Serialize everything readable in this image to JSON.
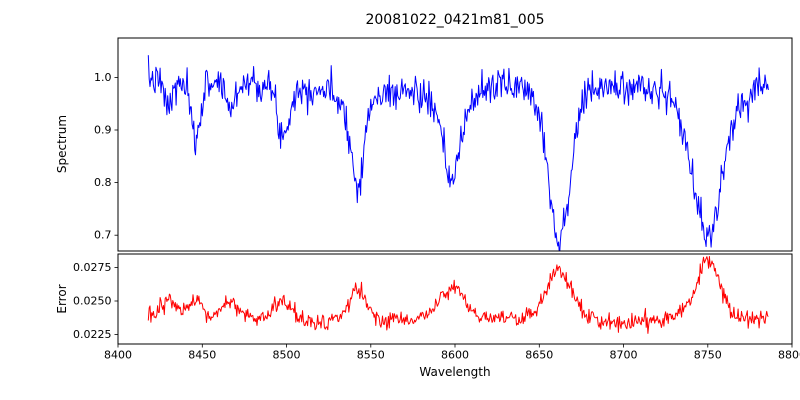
{
  "figure": {
    "title": "20081022_0421m81_005",
    "xlabel": "Wavelength",
    "background": "#ffffff",
    "axis_color": "#000000",
    "xlim": [
      8400,
      8800
    ],
    "xticks": [
      8400,
      8450,
      8500,
      8550,
      8600,
      8650,
      8700,
      8750,
      8800
    ],
    "xtick_labels": [
      "8400",
      "8450",
      "8500",
      "8550",
      "8600",
      "8650",
      "8700",
      "8750",
      "8800"
    ]
  },
  "chart_data": [
    {
      "id": "spectrum",
      "type": "line",
      "ylabel": "Spectrum",
      "line_color": "#0000ff",
      "xlim": [
        8400,
        8800
      ],
      "ylim": [
        0.67,
        1.075
      ],
      "yticks": [
        0.7,
        0.8,
        0.9,
        1.0
      ],
      "ytick_labels": [
        "0.7",
        "0.8",
        "0.9",
        "1.0"
      ],
      "x_start": 8418,
      "x_end": 8786,
      "x_step": 0.5,
      "continuum": 1.0,
      "continuum_wobble": {
        "amp": 0.008,
        "period": 190
      },
      "noise_sigma": 0.016,
      "noise_seed": 7,
      "absorption_lines": [
        {
          "center": 8430,
          "depth": 0.055,
          "sigma": 2.5,
          "gamma": 6,
          "wing": 0.3
        },
        {
          "center": 8446,
          "depth": 0.125,
          "sigma": 2.5,
          "gamma": 6,
          "wing": 0.25
        },
        {
          "center": 8467,
          "depth": 0.06,
          "sigma": 2.5,
          "gamma": 6,
          "wing": 0.3
        },
        {
          "center": 8498,
          "depth": 0.105,
          "sigma": 3.0,
          "gamma": 8,
          "wing": 0.3
        },
        {
          "center": 8542,
          "depth": 0.19,
          "sigma": 3.5,
          "gamma": 10,
          "wing": 0.3
        },
        {
          "center": 8598,
          "depth": 0.19,
          "sigma": 5.0,
          "gamma": 14,
          "wing": 0.35
        },
        {
          "center": 8662,
          "depth": 0.31,
          "sigma": 6.0,
          "gamma": 12,
          "wing": 0.25
        },
        {
          "center": 8750,
          "depth": 0.29,
          "sigma": 9.0,
          "gamma": 14,
          "wing": 0.25
        }
      ]
    },
    {
      "id": "error",
      "type": "line",
      "ylabel": "Error",
      "line_color": "#ff0000",
      "xlim": [
        8400,
        8800
      ],
      "ylim": [
        0.0218,
        0.0285
      ],
      "yticks": [
        0.0225,
        0.025,
        0.0275
      ],
      "ytick_labels": [
        "0.0225",
        "0.0250",
        "0.0275"
      ],
      "x_start": 8418,
      "x_end": 8786,
      "x_step": 0.5,
      "baseline": 0.0236,
      "baseline_wobble": {
        "amp": 0.00015,
        "period": 160
      },
      "noise_sigma": 0.00032,
      "noise_seed": 13,
      "peaks": [
        {
          "center": 8430,
          "amp": 0.0013,
          "sigma": 5
        },
        {
          "center": 8446,
          "amp": 0.0011,
          "sigma": 4
        },
        {
          "center": 8467,
          "amp": 0.0013,
          "sigma": 5
        },
        {
          "center": 8498,
          "amp": 0.0016,
          "sigma": 5
        },
        {
          "center": 8542,
          "amp": 0.0023,
          "sigma": 5
        },
        {
          "center": 8598,
          "amp": 0.0023,
          "sigma": 7
        },
        {
          "center": 8662,
          "amp": 0.0036,
          "sigma": 8
        },
        {
          "center": 8750,
          "amp": 0.0042,
          "sigma": 7
        }
      ]
    }
  ]
}
